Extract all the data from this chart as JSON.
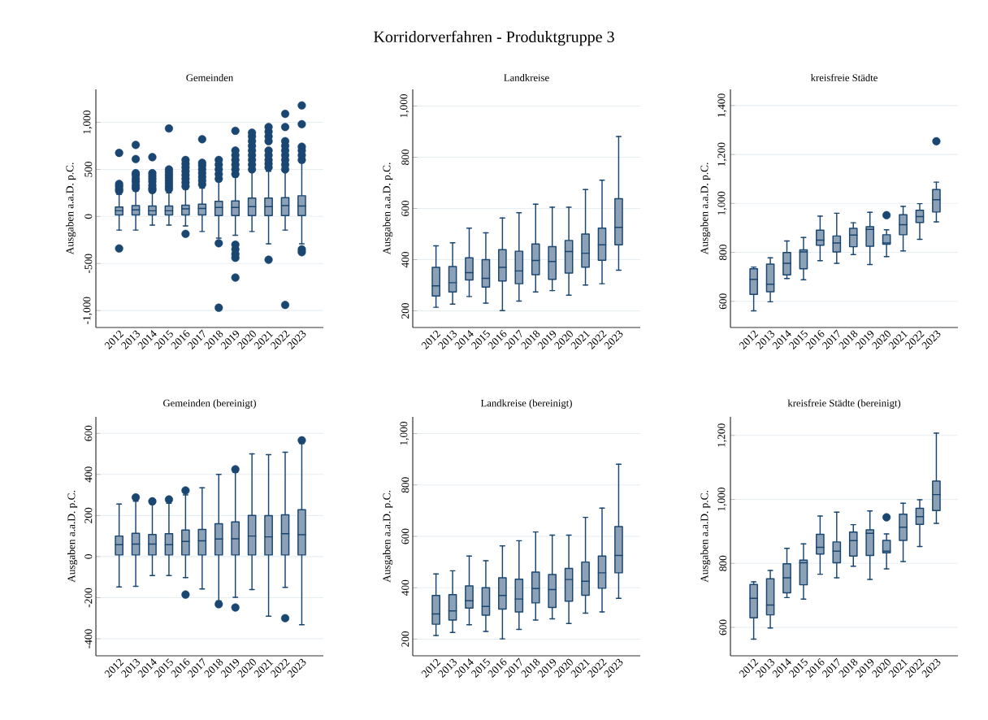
{
  "chart_data": [
    {
      "type": "box",
      "title": "Gemeinden",
      "ylabel": "Ausgaben a.a.D. p.C.",
      "annotations": [
        "Korridorverfahren - Produktgruppe 3"
      ],
      "color": "#8ca1b5",
      "grid": "y",
      "ylim": [
        -1180,
        1350
      ],
      "yticks": [
        {
          "value": -1000,
          "label": "-1,000"
        },
        -500,
        0,
        500,
        {
          "value": 1000,
          "label": "1,000"
        }
      ],
      "categories": [
        "2012",
        "2013",
        "2014",
        "2015",
        "2016",
        "2017",
        "2018",
        "2019",
        "2020",
        "2021",
        "2022",
        "2023"
      ],
      "boxes": [
        {
          "low": -145,
          "q1": 15,
          "median": 60,
          "q3": 100,
          "high": 235,
          "outliers": [
            -340,
            270,
            290,
            320,
            345,
            675
          ]
        },
        {
          "low": -145,
          "q1": 15,
          "median": 70,
          "q3": 115,
          "high": 270,
          "outliers": [
            300,
            330,
            370,
            400,
            440,
            460,
            610,
            760
          ]
        },
        {
          "low": -92,
          "q1": 15,
          "median": 60,
          "q3": 110,
          "high": 250,
          "outliers": [
            280,
            300,
            330,
            370,
            400,
            430,
            460,
            630
          ]
        },
        {
          "low": -92,
          "q1": 15,
          "median": 60,
          "q3": 110,
          "high": 250,
          "outliers": [
            290,
            320,
            350,
            380,
            410,
            440,
            470,
            500,
            935
          ]
        },
        {
          "low": -100,
          "q1": 15,
          "median": 80,
          "q3": 120,
          "high": 290,
          "outliers": [
            -185,
            320,
            360,
            400,
            440,
            480,
            520,
            560,
            600
          ]
        },
        {
          "low": -160,
          "q1": 15,
          "median": 85,
          "q3": 130,
          "high": 300,
          "outliers": [
            340,
            380,
            420,
            460,
            500,
            540,
            570,
            820
          ]
        },
        {
          "low": -230,
          "q1": 10,
          "median": 95,
          "q3": 160,
          "high": 370,
          "outliers": [
            -970,
            -285,
            400,
            450,
            500,
            550,
            600
          ]
        },
        {
          "low": -200,
          "q1": 10,
          "median": 95,
          "q3": 165,
          "high": 420,
          "outliers": [
            -650,
            -440,
            -400,
            -350,
            -300,
            450,
            500,
            550,
            600,
            650,
            700,
            910
          ]
        },
        {
          "low": -160,
          "q1": 10,
          "median": 105,
          "q3": 195,
          "high": 480,
          "outliers": [
            500,
            550,
            600,
            650,
            700,
            750,
            800,
            850,
            890
          ]
        },
        {
          "low": -290,
          "q1": 10,
          "median": 105,
          "q3": 195,
          "high": 480,
          "outliers": [
            -460,
            520,
            560,
            600,
            650,
            700,
            800,
            850,
            900,
            950
          ]
        },
        {
          "low": -145,
          "q1": 10,
          "median": 115,
          "q3": 200,
          "high": 490,
          "outliers": [
            -940,
            500,
            550,
            600,
            650,
            700,
            750,
            800,
            950,
            1090
          ]
        },
        {
          "low": -290,
          "q1": 10,
          "median": 110,
          "q3": 220,
          "high": 570,
          "outliers": [
            -380,
            -350,
            600,
            650,
            700,
            740,
            980,
            1180
          ]
        }
      ]
    },
    {
      "type": "box",
      "title": "Landkreise",
      "ylabel": "Ausgaben a.a.D. p.C.",
      "color": "#8ca1b5",
      "grid": "y",
      "ylim": [
        135,
        1065
      ],
      "yticks": [
        200,
        400,
        600,
        800,
        {
          "value": 1000,
          "label": "1,000"
        }
      ],
      "categories": [
        "2012",
        "2013",
        "2014",
        "2015",
        "2016",
        "2017",
        "2018",
        "2019",
        "2020",
        "2021",
        "2022",
        "2023"
      ],
      "boxes": [
        {
          "low": 214,
          "q1": 258,
          "median": 298,
          "q3": 370,
          "high": 454
        },
        {
          "low": 226,
          "q1": 274,
          "median": 310,
          "q3": 373,
          "high": 466
        },
        {
          "low": 256,
          "q1": 321,
          "median": 349,
          "q3": 407,
          "high": 523
        },
        {
          "low": 230,
          "q1": 293,
          "median": 327,
          "q3": 400,
          "high": 505
        },
        {
          "low": 201,
          "q1": 317,
          "median": 370,
          "q3": 439,
          "high": 563
        },
        {
          "low": 238,
          "q1": 306,
          "median": 356,
          "q3": 433,
          "high": 583
        },
        {
          "low": 274,
          "q1": 341,
          "median": 397,
          "q3": 461,
          "high": 617
        },
        {
          "low": 279,
          "q1": 323,
          "median": 393,
          "q3": 451,
          "high": 605
        },
        {
          "low": 261,
          "q1": 348,
          "median": 432,
          "q3": 475,
          "high": 605
        },
        {
          "low": 301,
          "q1": 371,
          "median": 425,
          "q3": 500,
          "high": 674
        },
        {
          "low": 306,
          "q1": 398,
          "median": 458,
          "q3": 523,
          "high": 710
        },
        {
          "low": 359,
          "q1": 458,
          "median": 526,
          "q3": 638,
          "high": 881
        }
      ]
    },
    {
      "type": "box",
      "title": "kreisfreie Städte",
      "ylabel": "Ausgaben a.a.D. p.C.",
      "color": "#8ca1b5",
      "grid": "y",
      "ylim": [
        493,
        1466
      ],
      "yticks": [
        600,
        800,
        {
          "value": 1000,
          "label": "1,000"
        },
        {
          "value": 1200,
          "label": "1,200"
        },
        {
          "value": 1400,
          "label": "1,400"
        }
      ],
      "categories": [
        "2012",
        "2013",
        "2014",
        "2015",
        "2016",
        "2017",
        "2018",
        "2019",
        "2020",
        "2021",
        "2022",
        "2023"
      ],
      "boxes": [
        {
          "low": 561,
          "q1": 628,
          "median": 690,
          "q3": 733,
          "high": 740
        },
        {
          "low": 598,
          "q1": 639,
          "median": 670,
          "q3": 752,
          "high": 778
        },
        {
          "low": 693,
          "q1": 708,
          "median": 755,
          "q3": 799,
          "high": 847
        },
        {
          "low": 688,
          "q1": 733,
          "median": 802,
          "q3": 810,
          "high": 861
        },
        {
          "low": 766,
          "q1": 829,
          "median": 850,
          "q3": 891,
          "high": 948
        },
        {
          "low": 755,
          "q1": 802,
          "median": 838,
          "q3": 867,
          "high": 960
        },
        {
          "low": 791,
          "q1": 823,
          "median": 871,
          "q3": 898,
          "high": 921
        },
        {
          "low": 750,
          "q1": 825,
          "median": 894,
          "q3": 905,
          "high": 964
        },
        {
          "low": 783,
          "q1": 833,
          "median": 838,
          "q3": 872,
          "high": 892,
          "outliers": [
            952
          ]
        },
        {
          "low": 806,
          "q1": 872,
          "median": 913,
          "q3": 954,
          "high": 988
        },
        {
          "low": 853,
          "q1": 922,
          "median": 946,
          "q3": 972,
          "high": 999
        },
        {
          "low": 925,
          "q1": 965,
          "median": 1015,
          "q3": 1057,
          "high": 1087,
          "outliers": [
            1254
          ]
        }
      ]
    },
    {
      "type": "box",
      "title": "Gemeinden (bereinigt)",
      "ylabel": "Ausgaben a.a.D. p.C.",
      "color": "#8ca1b5",
      "grid": "y",
      "ylim": [
        -483,
        680
      ],
      "yticks": [
        -400,
        -200,
        0,
        200,
        400,
        600
      ],
      "categories": [
        "2012",
        "2013",
        "2014",
        "2015",
        "2016",
        "2017",
        "2018",
        "2019",
        "2020",
        "2021",
        "2022",
        "2023"
      ],
      "boxes": [
        {
          "low": -148,
          "q1": 8,
          "median": 58,
          "q3": 100,
          "high": 256
        },
        {
          "low": -145,
          "q1": 8,
          "median": 61,
          "q3": 113,
          "high": 270,
          "outliers": [
            288
          ]
        },
        {
          "low": -92,
          "q1": 8,
          "median": 61,
          "q3": 107,
          "high": 255,
          "outliers": [
            269
          ]
        },
        {
          "low": -92,
          "q1": 8,
          "median": 58,
          "q3": 111,
          "high": 260,
          "outliers": [
            278
          ]
        },
        {
          "low": -102,
          "q1": 8,
          "median": 74,
          "q3": 129,
          "high": 300,
          "outliers": [
            -185,
            322
          ]
        },
        {
          "low": -158,
          "q1": 8,
          "median": 77,
          "q3": 132,
          "high": 335
        },
        {
          "low": -216,
          "q1": 8,
          "median": 86,
          "q3": 160,
          "high": 400,
          "outliers": [
            -232
          ]
        },
        {
          "low": -198,
          "q1": 8,
          "median": 87,
          "q3": 169,
          "high": 410,
          "outliers": [
            -248,
            425
          ]
        },
        {
          "low": -161,
          "q1": 8,
          "median": 100,
          "q3": 200,
          "high": 500
        },
        {
          "low": -290,
          "q1": 8,
          "median": 96,
          "q3": 199,
          "high": 496
        },
        {
          "low": -150,
          "q1": 8,
          "median": 111,
          "q3": 203,
          "high": 508,
          "outliers": [
            -300
          ]
        },
        {
          "low": -332,
          "q1": 8,
          "median": 106,
          "q3": 228,
          "high": 550,
          "outliers": [
            566
          ]
        }
      ]
    },
    {
      "type": "box",
      "title": "Landkreise (bereinigt)",
      "ylabel": "Ausgaben a.a.D. p.C.",
      "color": "#8ca1b5",
      "grid": "y",
      "ylim": [
        135,
        1065
      ],
      "yticks": [
        200,
        400,
        600,
        800,
        {
          "value": 1000,
          "label": "1,000"
        }
      ],
      "categories": [
        "2012",
        "2013",
        "2014",
        "2015",
        "2016",
        "2017",
        "2018",
        "2019",
        "2020",
        "2021",
        "2022",
        "2023"
      ],
      "boxes": [
        {
          "low": 214,
          "q1": 258,
          "median": 298,
          "q3": 370,
          "high": 454
        },
        {
          "low": 226,
          "q1": 274,
          "median": 310,
          "q3": 373,
          "high": 466
        },
        {
          "low": 256,
          "q1": 321,
          "median": 349,
          "q3": 407,
          "high": 523
        },
        {
          "low": 230,
          "q1": 293,
          "median": 327,
          "q3": 400,
          "high": 505
        },
        {
          "low": 201,
          "q1": 317,
          "median": 370,
          "q3": 439,
          "high": 563
        },
        {
          "low": 238,
          "q1": 306,
          "median": 356,
          "q3": 433,
          "high": 583
        },
        {
          "low": 274,
          "q1": 341,
          "median": 397,
          "q3": 461,
          "high": 617
        },
        {
          "low": 279,
          "q1": 323,
          "median": 393,
          "q3": 451,
          "high": 605
        },
        {
          "low": 261,
          "q1": 348,
          "median": 432,
          "q3": 475,
          "high": 605
        },
        {
          "low": 301,
          "q1": 371,
          "median": 425,
          "q3": 500,
          "high": 674
        },
        {
          "low": 306,
          "q1": 398,
          "median": 458,
          "q3": 523,
          "high": 710
        },
        {
          "low": 359,
          "q1": 458,
          "median": 526,
          "q3": 638,
          "high": 881
        }
      ]
    },
    {
      "type": "box",
      "title": "kreisfreie Städte (bereinigt)",
      "ylabel": "Ausgaben a.a.D. p.C.",
      "color": "#8ca1b5",
      "grid": "y",
      "ylim": [
        511,
        1258
      ],
      "yticks": [
        600,
        800,
        {
          "value": 1000,
          "label": "1,000"
        },
        {
          "value": 1200,
          "label": "1,200"
        }
      ],
      "categories": [
        "2012",
        "2013",
        "2014",
        "2015",
        "2016",
        "2017",
        "2018",
        "2019",
        "2020",
        "2021",
        "2022",
        "2023"
      ],
      "boxes": [
        {
          "low": 563,
          "q1": 630,
          "median": 691,
          "q3": 734,
          "high": 742
        },
        {
          "low": 598,
          "q1": 639,
          "median": 670,
          "q3": 752,
          "high": 778
        },
        {
          "low": 693,
          "q1": 708,
          "median": 755,
          "q3": 799,
          "high": 847
        },
        {
          "low": 688,
          "q1": 733,
          "median": 802,
          "q3": 810,
          "high": 861
        },
        {
          "low": 766,
          "q1": 829,
          "median": 850,
          "q3": 891,
          "high": 948
        },
        {
          "low": 755,
          "q1": 802,
          "median": 838,
          "q3": 867,
          "high": 960
        },
        {
          "low": 791,
          "q1": 823,
          "median": 871,
          "q3": 898,
          "high": 921
        },
        {
          "low": 750,
          "q1": 825,
          "median": 894,
          "q3": 905,
          "high": 964
        },
        {
          "low": 783,
          "q1": 833,
          "median": 838,
          "q3": 872,
          "high": 892,
          "outliers": [
            944
          ]
        },
        {
          "low": 806,
          "q1": 872,
          "median": 913,
          "q3": 954,
          "high": 988
        },
        {
          "low": 853,
          "q1": 922,
          "median": 946,
          "q3": 972,
          "high": 999
        },
        {
          "low": 925,
          "q1": 965,
          "median": 1015,
          "q3": 1057,
          "high": 1207
        }
      ]
    }
  ]
}
